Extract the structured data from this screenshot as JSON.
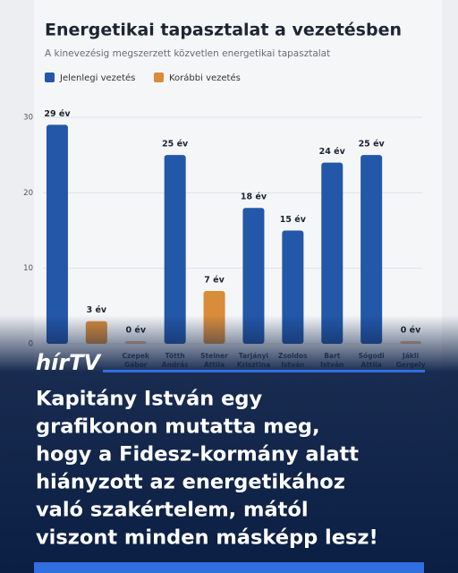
{
  "chart_data": {
    "type": "bar",
    "title": "Energetikai tapasztalat a vezetésben",
    "subtitle": "A kinevezésig megszerzett közvetlen energetikai tapasztalat",
    "categories": [
      null,
      null,
      "Czepek Gábor",
      "Tötth András",
      "Steiner Attila",
      "Tarjányi Krisztina",
      "Zsoldos István",
      "Bart István",
      "Sógodi Attila",
      "Jákli Gergely"
    ],
    "series": [
      {
        "name": "Jelenlegi vezetés",
        "color": "#2357a8",
        "values": [
          29,
          null,
          null,
          25,
          null,
          18,
          15,
          24,
          25,
          null
        ],
        "value_labels": [
          "29 év",
          null,
          null,
          "25 év",
          null,
          "18 év",
          "15 év",
          "24 év",
          "25 év",
          null
        ]
      },
      {
        "name": "Korábbi vezetés",
        "color": "#d98c3a",
        "values": [
          null,
          3,
          0,
          null,
          7,
          null,
          null,
          null,
          null,
          0
        ],
        "value_labels": [
          null,
          "3 év",
          "0 év",
          null,
          "7 év",
          null,
          null,
          null,
          null,
          "0 év"
        ]
      }
    ],
    "ylim": [
      0,
      30
    ],
    "yticks": [
      0,
      10,
      20,
      30
    ],
    "grid": true
  },
  "logo": "hírTV",
  "headline": [
    "Kapitány István egy",
    "grafikonon mutatta meg,",
    "hogy a Fidesz-kormány alatt",
    "hiányzott az energetikához",
    "való szakértelem, mától",
    "viszont minden másképp lesz!"
  ]
}
